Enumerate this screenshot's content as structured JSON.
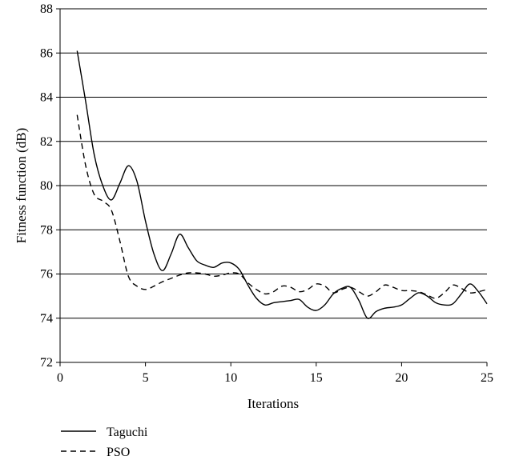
{
  "chart_data": {
    "type": "line",
    "title": "",
    "xlabel": "Iterations",
    "ylabel": "Fitness function (dB)",
    "xlim": [
      0,
      25
    ],
    "ylim": [
      72,
      88
    ],
    "xticks": [
      "0",
      "5",
      "10",
      "15",
      "20",
      "25"
    ],
    "yticks": [
      "72",
      "74",
      "76",
      "78",
      "80",
      "82",
      "84",
      "86",
      "88"
    ],
    "grid": "horizontal",
    "legend": "below-left",
    "series": [
      {
        "name": "Taguchi",
        "style": "solid",
        "color": "#000000",
        "x": [
          1,
          1.5,
          2,
          2.5,
          3,
          3.5,
          4,
          4.5,
          5,
          5.5,
          6,
          6.5,
          7,
          7.5,
          8,
          8.5,
          9,
          9.5,
          10,
          10.5,
          11,
          11.5,
          12,
          12.5,
          13,
          13.5,
          14,
          14.5,
          15,
          15.5,
          16,
          16.5,
          17,
          17.5,
          18,
          18.5,
          19,
          19.5,
          20,
          20.5,
          21,
          21.5,
          22,
          22.5,
          23,
          23.5,
          24,
          24.5,
          25
        ],
        "values": [
          86.1,
          83.8,
          81.4,
          80.0,
          79.35,
          80.1,
          80.9,
          80.2,
          78.4,
          76.9,
          76.15,
          76.9,
          77.8,
          77.2,
          76.6,
          76.4,
          76.3,
          76.5,
          76.5,
          76.2,
          75.5,
          74.9,
          74.6,
          74.7,
          74.75,
          74.8,
          74.85,
          74.5,
          74.35,
          74.6,
          75.1,
          75.35,
          75.4,
          74.8,
          74.0,
          74.3,
          74.45,
          74.5,
          74.6,
          74.9,
          75.15,
          75.0,
          74.7,
          74.6,
          74.65,
          75.1,
          75.55,
          75.2,
          74.65
        ]
      },
      {
        "name": "PSO",
        "style": "dashed",
        "color": "#000000",
        "x": [
          1,
          1.5,
          2,
          2.5,
          3,
          3.5,
          4,
          4.5,
          5,
          5.5,
          6,
          6.5,
          7,
          7.5,
          8,
          8.5,
          9,
          9.5,
          10,
          10.5,
          11,
          11.5,
          12,
          12.5,
          13,
          13.5,
          14,
          14.5,
          15,
          15.5,
          16,
          16.5,
          17,
          17.5,
          18,
          18.5,
          19,
          19.5,
          20,
          20.5,
          21,
          21.5,
          22,
          22.5,
          23,
          23.5,
          24,
          24.5,
          25
        ],
        "values": [
          83.2,
          80.9,
          79.6,
          79.3,
          78.9,
          77.5,
          75.9,
          75.45,
          75.3,
          75.45,
          75.65,
          75.8,
          75.95,
          76.05,
          76.05,
          76.0,
          75.9,
          75.95,
          76.05,
          76.0,
          75.6,
          75.3,
          75.1,
          75.2,
          75.45,
          75.4,
          75.2,
          75.3,
          75.55,
          75.45,
          75.15,
          75.3,
          75.4,
          75.2,
          75.0,
          75.2,
          75.5,
          75.4,
          75.25,
          75.25,
          75.2,
          75.05,
          74.9,
          75.15,
          75.5,
          75.35,
          75.15,
          75.2,
          75.3
        ]
      }
    ]
  }
}
